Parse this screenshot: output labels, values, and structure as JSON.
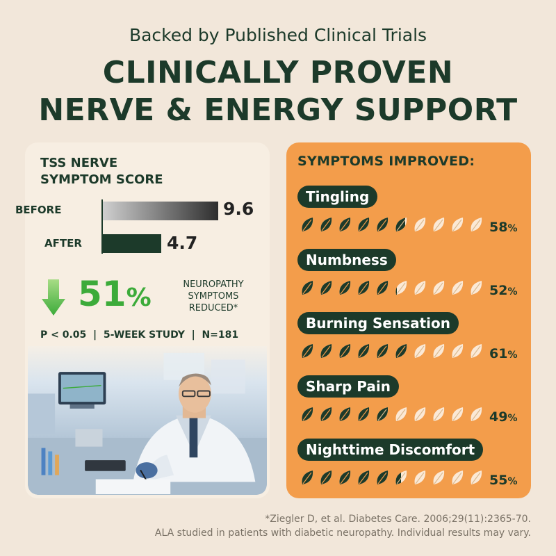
{
  "header": {
    "subtitle": "Backed by Published Clinical Trials",
    "headline_line1": "CLINICALLY PROVEN",
    "headline_line2": "NERVE & ENERGY SUPPORT"
  },
  "score_card": {
    "title_line1": "TSS NERVE",
    "title_line2": "SYMPTOM SCORE",
    "before_label": "BEFORE",
    "before_value": "9.6",
    "after_label": "AFTER",
    "after_value": "4.7",
    "reduction_value": "51",
    "reduction_symbol": "%",
    "reduction_note_line1": "NEUROPATHY",
    "reduction_note_line2": "SYMPTOMS",
    "reduction_note_line3": "REDUCED*",
    "stats": "P < 0.05  |  5-WEEK STUDY  |  N=181",
    "arrow_icon": "down-arrow-icon",
    "arrow_color": "#3cab3a"
  },
  "symptoms_card": {
    "title": "SYMPTOMS IMPROVED:",
    "items": [
      {
        "label": "Tingling",
        "value": "58",
        "fraction": 0.58
      },
      {
        "label": "Numbness",
        "value": "52",
        "fraction": 0.52
      },
      {
        "label": "Burning Sensation",
        "value": "61",
        "fraction": 0.61
      },
      {
        "label": "Sharp Pain",
        "value": "49",
        "fraction": 0.49
      },
      {
        "label": "Nighttime Discomfort",
        "value": "55",
        "fraction": 0.55
      }
    ],
    "percent_symbol": "%",
    "leaf_icon": "leaf-icon",
    "leaf_filled_color": "#1c3a2a",
    "leaf_empty_color": "#fbe9d6"
  },
  "footnote": {
    "line1": "*Ziegler D, et al. Diabetes Care. 2006;29(11):2365-70.",
    "line2": "ALA studied in patients with diabetic neuropathy. Individual results may vary."
  },
  "colors": {
    "background": "#f2e7da",
    "dark_green": "#1c3a2a",
    "accent_green": "#3cab3a",
    "orange": "#f39d4b"
  }
}
